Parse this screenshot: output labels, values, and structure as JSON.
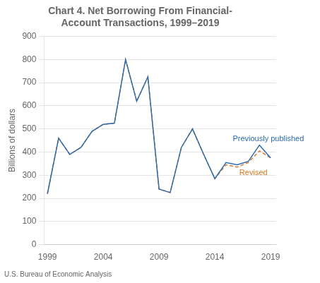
{
  "chart_data": {
    "type": "line",
    "title": "Chart 4. Net Borrowing From Financial-\nAccount Transactions, 1999–2019",
    "y_label": "Billions of dollars",
    "footnote": "U.S. Bureau of Economic Analysis",
    "x": [
      1999,
      2000,
      2001,
      2002,
      2003,
      2004,
      2005,
      2006,
      2007,
      2008,
      2009,
      2010,
      2011,
      2012,
      2013,
      2014,
      2015,
      2016,
      2017,
      2018,
      2019
    ],
    "series": [
      {
        "name": "Revised",
        "color": "#e07820",
        "line_style": "dashed",
        "values": [
          220,
          460,
          390,
          420,
          490,
          520,
          525,
          800,
          620,
          725,
          240,
          225,
          420,
          500,
          390,
          285,
          345,
          335,
          355,
          405,
          375
        ]
      },
      {
        "name": "Previously published",
        "color": "#2b6cb0",
        "line_style": "solid",
        "values": [
          220,
          460,
          390,
          420,
          490,
          520,
          525,
          800,
          620,
          725,
          240,
          225,
          420,
          500,
          390,
          285,
          355,
          345,
          360,
          430,
          375
        ]
      }
    ],
    "xlim": [
      1998.7,
      2019.5
    ],
    "xticks": [
      1999,
      2004,
      2009,
      2014,
      2019
    ],
    "ylim": [
      0,
      900
    ],
    "yticks": [
      0,
      100,
      200,
      300,
      400,
      500,
      600,
      700,
      800,
      900
    ],
    "grid": "y",
    "annotations": [
      {
        "text": "Previously published",
        "x": 2015.6,
        "y": 455,
        "color": "#2b6cb0"
      },
      {
        "text": "Revised",
        "x": 2016.2,
        "y": 310,
        "color": "#e07820"
      }
    ]
  }
}
